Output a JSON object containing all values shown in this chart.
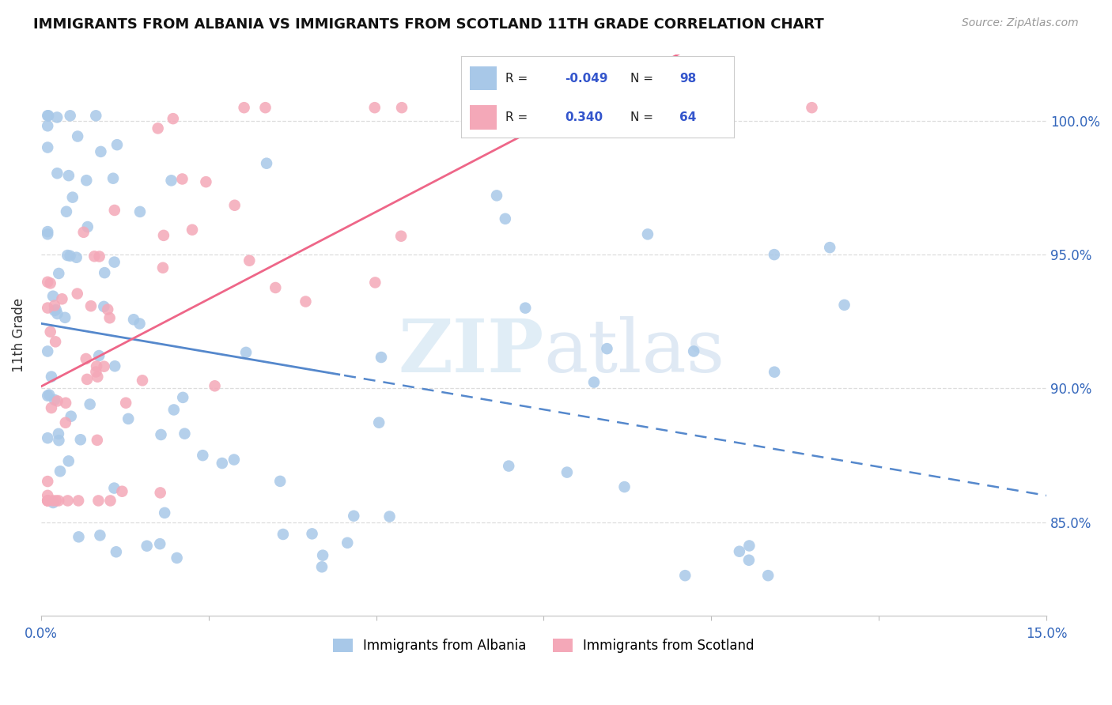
{
  "title": "IMMIGRANTS FROM ALBANIA VS IMMIGRANTS FROM SCOTLAND 11TH GRADE CORRELATION CHART",
  "source": "Source: ZipAtlas.com",
  "ylabel": "11th Grade",
  "yticks": [
    "100.0%",
    "95.0%",
    "90.0%",
    "85.0%"
  ],
  "ytick_vals": [
    1.0,
    0.95,
    0.9,
    0.85
  ],
  "xlim": [
    0.0,
    0.15
  ],
  "ylim": [
    0.815,
    1.025
  ],
  "legend_albania": "Immigrants from Albania",
  "legend_scotland": "Immigrants from Scotland",
  "r_albania": "-0.049",
  "n_albania": "98",
  "r_scotland": "0.340",
  "n_scotland": "64",
  "color_albania": "#a8c8e8",
  "color_scotland": "#f4a8b8",
  "color_albania_line": "#5588cc",
  "color_scotland_line": "#ee6688",
  "watermark_zip": "ZIP",
  "watermark_atlas": "atlas"
}
